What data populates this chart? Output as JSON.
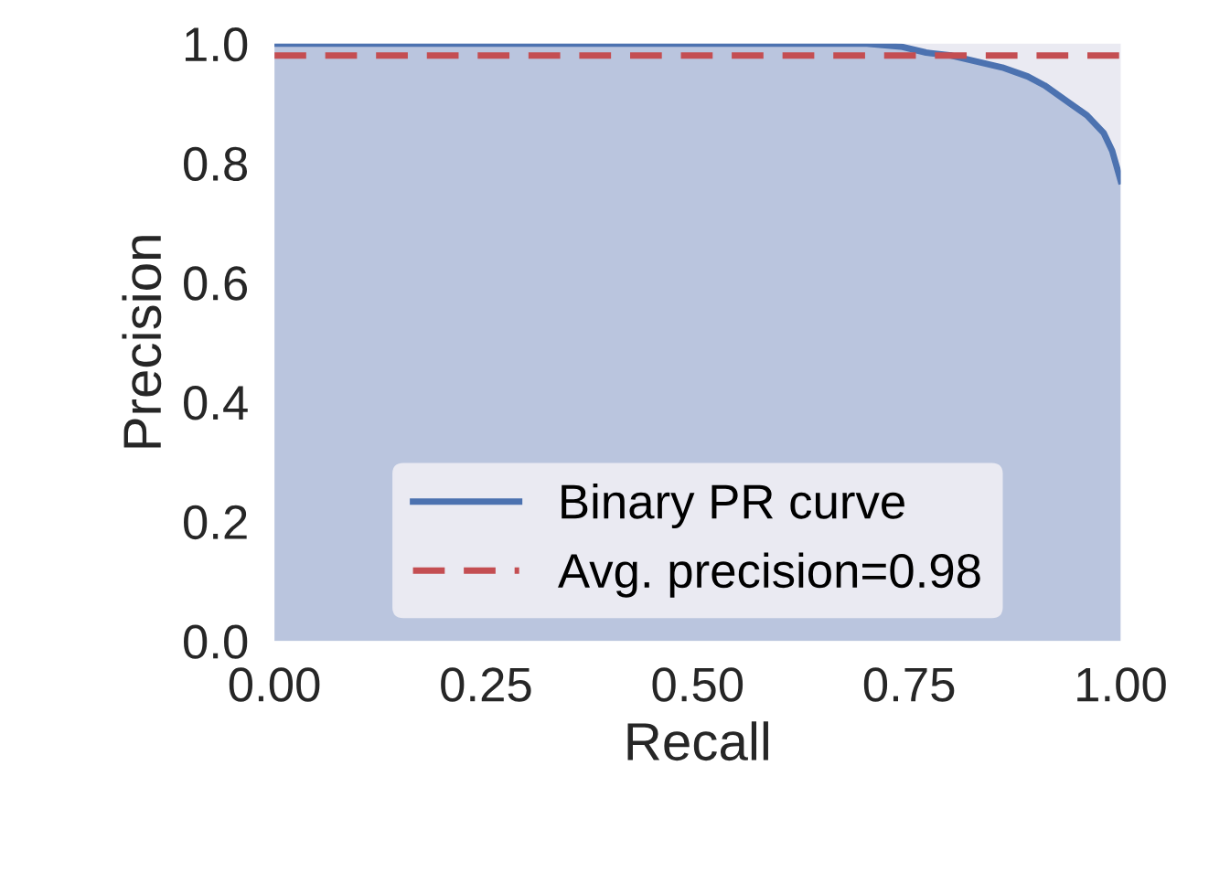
{
  "chart_data": {
    "type": "area",
    "xlabel": "Recall",
    "ylabel": "Precision",
    "series": [
      {
        "name": "Binary PR curve",
        "color": "#4c72b0",
        "x": [
          0.0,
          0.2,
          0.4,
          0.6,
          0.7,
          0.74,
          0.77,
          0.8,
          0.83,
          0.86,
          0.89,
          0.91,
          0.94,
          0.96,
          0.98,
          0.99,
          1.0
        ],
        "values": [
          1.0,
          1.0,
          1.0,
          1.0,
          1.0,
          0.995,
          0.985,
          0.98,
          0.97,
          0.96,
          0.945,
          0.93,
          0.9,
          0.88,
          0.85,
          0.82,
          0.77
        ]
      }
    ],
    "ref_lines": [
      {
        "axis": "y",
        "value": 0.98,
        "label": "Avg. precision=0.98",
        "color": "#c44e52",
        "line_style": "dashed"
      }
    ],
    "xlim": [
      0.0,
      1.0
    ],
    "ylim": [
      0.0,
      1.0
    ],
    "xticks": [
      {
        "value": 0,
        "label": "0.00"
      },
      {
        "value": 0.25,
        "label": "0.25"
      },
      {
        "value": 0.5,
        "label": "0.50"
      },
      {
        "value": 0.75,
        "label": "0.75"
      },
      {
        "value": 1,
        "label": "1.00"
      }
    ],
    "yticks": [
      {
        "value": 0,
        "label": "0.0"
      },
      0.2,
      0.4,
      0.6,
      0.8,
      {
        "value": 1,
        "label": "1.0"
      }
    ],
    "grid": false,
    "legend": "bottom"
  }
}
